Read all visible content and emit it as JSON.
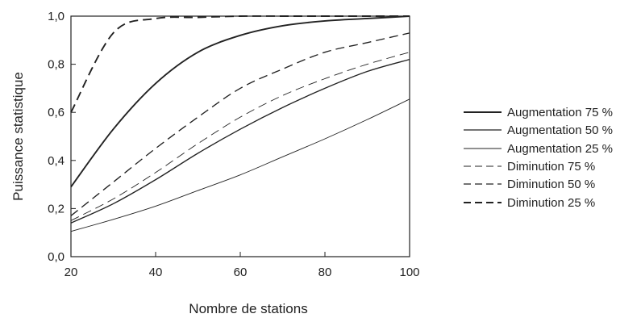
{
  "chart_data": {
    "type": "line",
    "xlabel": "Nombre de stations",
    "ylabel": "Puissance statistique",
    "xlim": [
      20,
      100
    ],
    "ylim": [
      0,
      1
    ],
    "x_ticks": [
      20,
      40,
      60,
      80,
      100
    ],
    "x_tick_labels": [
      "20",
      "40",
      "60",
      "80",
      "100"
    ],
    "y_ticks": [
      0,
      0.2,
      0.4,
      0.6,
      0.8,
      1.0
    ],
    "y_tick_labels": [
      "0,0",
      "0,2",
      "0,4",
      "0,6",
      "0,8",
      "1,0"
    ],
    "grid": false,
    "legend_position": "right",
    "x": [
      20,
      30,
      40,
      50,
      60,
      70,
      80,
      90,
      100
    ],
    "series": [
      {
        "name": "Augmentation 75 %",
        "style": "solid",
        "weight": "heavy",
        "values": [
          0.29,
          0.53,
          0.72,
          0.85,
          0.92,
          0.96,
          0.98,
          0.99,
          1.0
        ]
      },
      {
        "name": "Augmentation 50 %",
        "style": "solid",
        "weight": "medium",
        "values": [
          0.14,
          0.22,
          0.32,
          0.43,
          0.53,
          0.62,
          0.7,
          0.77,
          0.82
        ]
      },
      {
        "name": "Augmentation 25 %",
        "style": "solid",
        "weight": "thin",
        "values": [
          0.105,
          0.155,
          0.21,
          0.275,
          0.34,
          0.415,
          0.49,
          0.57,
          0.655
        ]
      },
      {
        "name": "Diminution 75 %",
        "style": "dashed",
        "weight": "thin",
        "values": [
          0.15,
          0.24,
          0.35,
          0.47,
          0.58,
          0.67,
          0.74,
          0.8,
          0.85
        ]
      },
      {
        "name": "Diminution 50 %",
        "style": "dashed",
        "weight": "medium",
        "values": [
          0.17,
          0.31,
          0.45,
          0.58,
          0.7,
          0.78,
          0.85,
          0.89,
          0.93
        ]
      },
      {
        "name": "Diminution 25 %",
        "style": "dashed",
        "weight": "heavy",
        "values": [
          0.6,
          0.93,
          0.99,
          0.995,
          1.0,
          1.0,
          1.0,
          1.0,
          1.0
        ]
      }
    ]
  }
}
